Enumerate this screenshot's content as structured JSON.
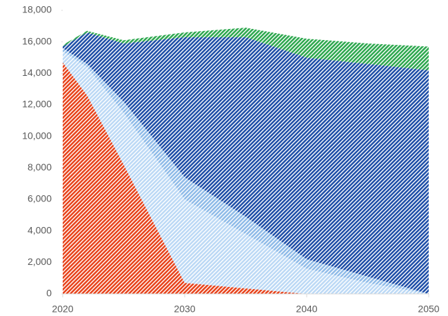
{
  "chart_data": {
    "type": "stacked_area",
    "x": [
      2020,
      2022,
      2025,
      2030,
      2035,
      2040,
      2045,
      2050
    ],
    "xlim": [
      2020,
      2050
    ],
    "xticks": [
      2020,
      2030,
      2040,
      2050
    ],
    "ylim": [
      0,
      18000
    ],
    "yticks": [
      0,
      {
        "value": 2000,
        "label": "2,000"
      },
      {
        "value": 4000,
        "label": "4,000"
      },
      {
        "value": 6000,
        "label": "6,000"
      },
      {
        "value": 8000,
        "label": "8,000"
      },
      {
        "value": 10000,
        "label": "10,000"
      },
      {
        "value": 12000,
        "label": "12,000"
      },
      {
        "value": 14000,
        "label": "14,000"
      },
      {
        "value": 16000,
        "label": "16,000"
      },
      {
        "value": 18000,
        "label": "18,000"
      }
    ],
    "grid": false,
    "series": [
      {
        "color": "#e8441c",
        "values": [
          14700,
          12600,
          8200,
          700,
          350,
          0,
          0,
          0
        ]
      },
      {
        "color": "#bcd9f5",
        "values": [
          700,
          1800,
          3300,
          5300,
          3450,
          1600,
          700,
          0
        ]
      },
      {
        "color": "#8fbbe8",
        "values": [
          200,
          200,
          700,
          1400,
          1100,
          600,
          400,
          0
        ]
      },
      {
        "color": "#1f4fa8",
        "values": [
          100,
          2000,
          3700,
          8900,
          11400,
          12800,
          13500,
          14200
        ]
      },
      {
        "color": "#2ea84f",
        "values": [
          100,
          100,
          200,
          300,
          600,
          1200,
          1300,
          1500
        ]
      }
    ]
  }
}
